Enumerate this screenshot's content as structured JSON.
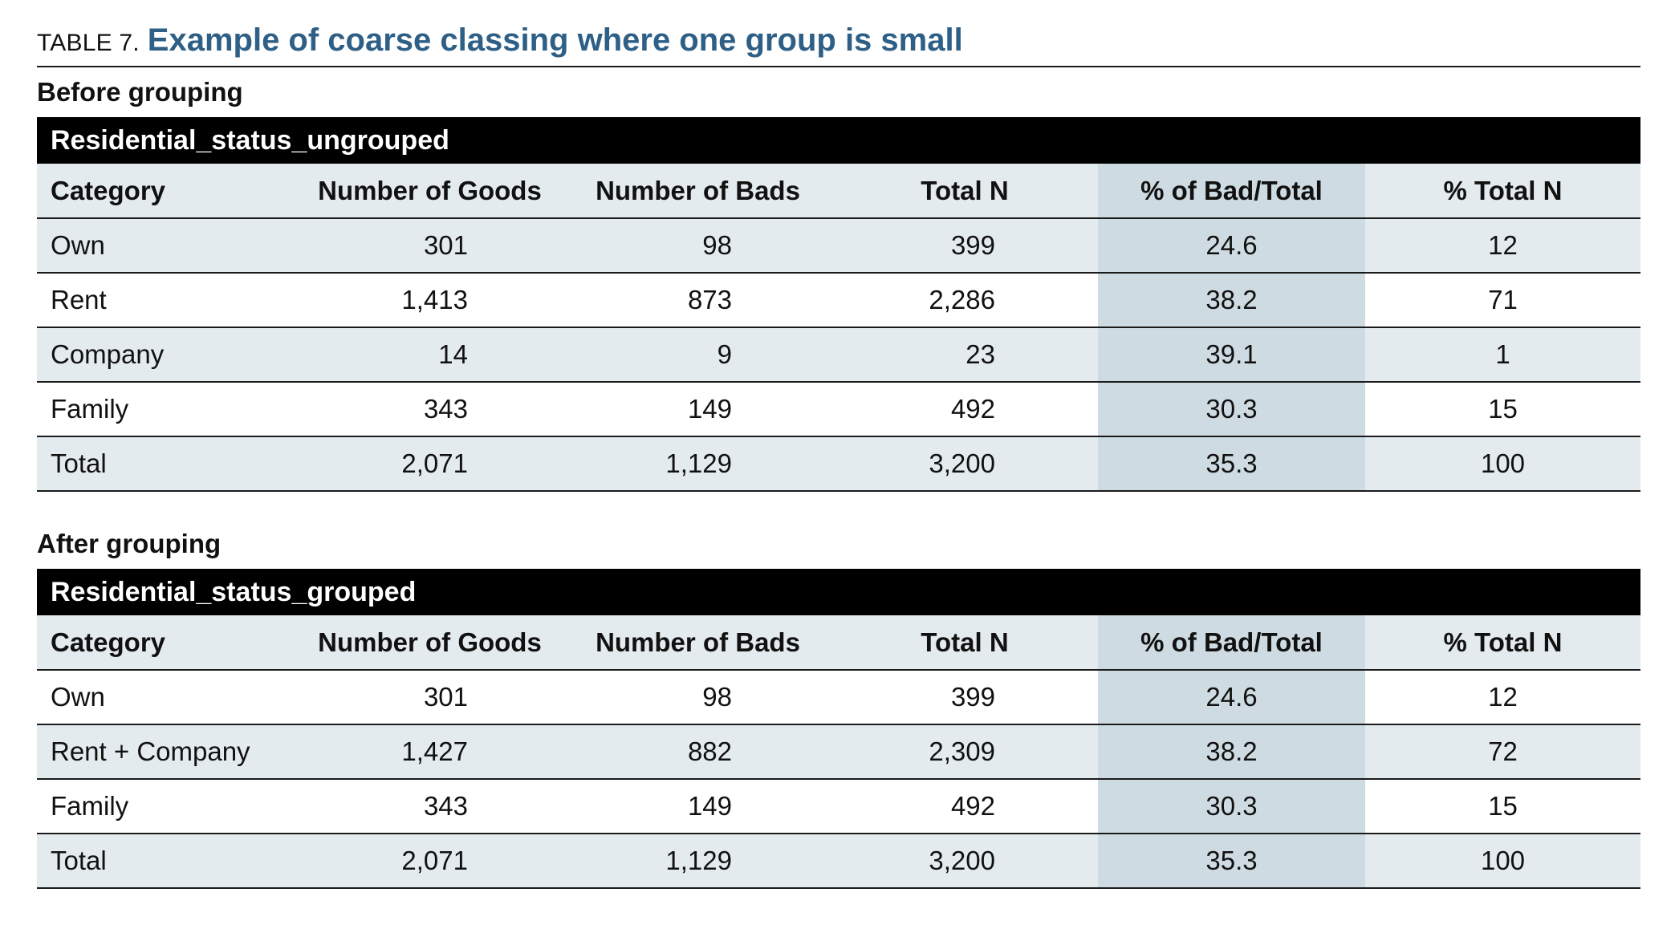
{
  "header": {
    "table_label": "TABLE 7.",
    "table_title": "Example of coarse classing where one group is small"
  },
  "columns": {
    "category": "Category",
    "goods": "Number of Goods",
    "bads": "Number of Bads",
    "total_n": "Total N",
    "pct_bad": "% of Bad/Total",
    "pct_total": "% Total N"
  },
  "before": {
    "heading": "Before grouping",
    "variable": "Residential_status_ungrouped",
    "rows": [
      {
        "category": "Own",
        "goods": "301",
        "bads": "98",
        "total_n": "399",
        "pct_bad": "24.6",
        "pct_total": "12"
      },
      {
        "category": "Rent",
        "goods": "1,413",
        "bads": "873",
        "total_n": "2,286",
        "pct_bad": "38.2",
        "pct_total": "71"
      },
      {
        "category": "Company",
        "goods": "14",
        "bads": "9",
        "total_n": "23",
        "pct_bad": "39.1",
        "pct_total": "1"
      },
      {
        "category": "Family",
        "goods": "343",
        "bads": "149",
        "total_n": "492",
        "pct_bad": "30.3",
        "pct_total": "15"
      }
    ],
    "total": {
      "category": "Total",
      "goods": "2,071",
      "bads": "1,129",
      "total_n": "3,200",
      "pct_bad": "35.3",
      "pct_total": "100"
    }
  },
  "after": {
    "heading": "After grouping",
    "variable": "Residential_status_grouped",
    "rows": [
      {
        "category": "Own",
        "goods": "301",
        "bads": "98",
        "total_n": "399",
        "pct_bad": "24.6",
        "pct_total": "12"
      },
      {
        "category": "Rent + Company",
        "goods": "1,427",
        "bads": "882",
        "total_n": "2,309",
        "pct_bad": "38.2",
        "pct_total": "72"
      },
      {
        "category": "Family",
        "goods": "343",
        "bads": "149",
        "total_n": "492",
        "pct_bad": "30.3",
        "pct_total": "15"
      }
    ],
    "total": {
      "category": "Total",
      "goods": "2,071",
      "bads": "1,129",
      "total_n": "3,200",
      "pct_bad": "35.3",
      "pct_total": "100"
    }
  },
  "colors": {
    "title_blue": "#2e5f86",
    "row_shade": "#e4ebef",
    "highlight_column": "#cfdbe2",
    "bar_black": "#000000"
  }
}
